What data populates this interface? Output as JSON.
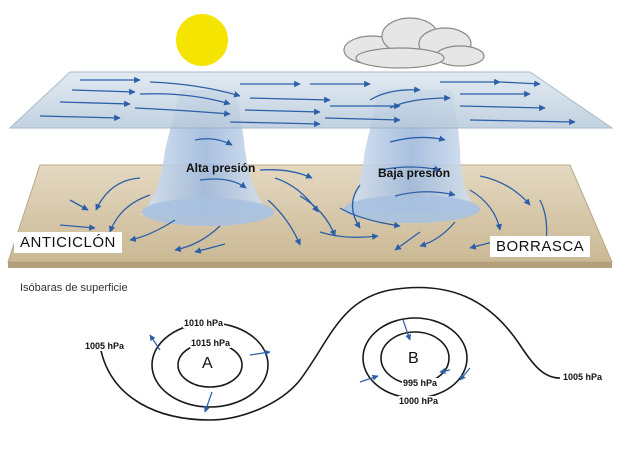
{
  "diagram": {
    "labels": {
      "high_pressure": "Alta presión",
      "low_pressure": "Baja presión",
      "anticyclone": "ANTICICLÓN",
      "storm": "BORRASCA",
      "surface_isobars": "Isóbaras de superficie"
    },
    "isobars": {
      "left_outer": "1005 hPa",
      "high_outer": "1010 hPa",
      "high_inner": "1015 hPa",
      "high_center": "A",
      "low_center": "B",
      "low_inner": "995 hPa",
      "low_outer": "1000 hPa",
      "right_outer": "1005 hPa"
    },
    "colors": {
      "sun": "#f5e400",
      "sky_plane": "#c9d8e6",
      "ground_plane": "#d9cbb0",
      "column": "#b9cde6",
      "wind_arrow": "#2b5fa8",
      "isobar_line": "#1a1a1a"
    },
    "icons": [
      "sun-icon",
      "cloud-icon",
      "wind-arrow-icon"
    ]
  }
}
